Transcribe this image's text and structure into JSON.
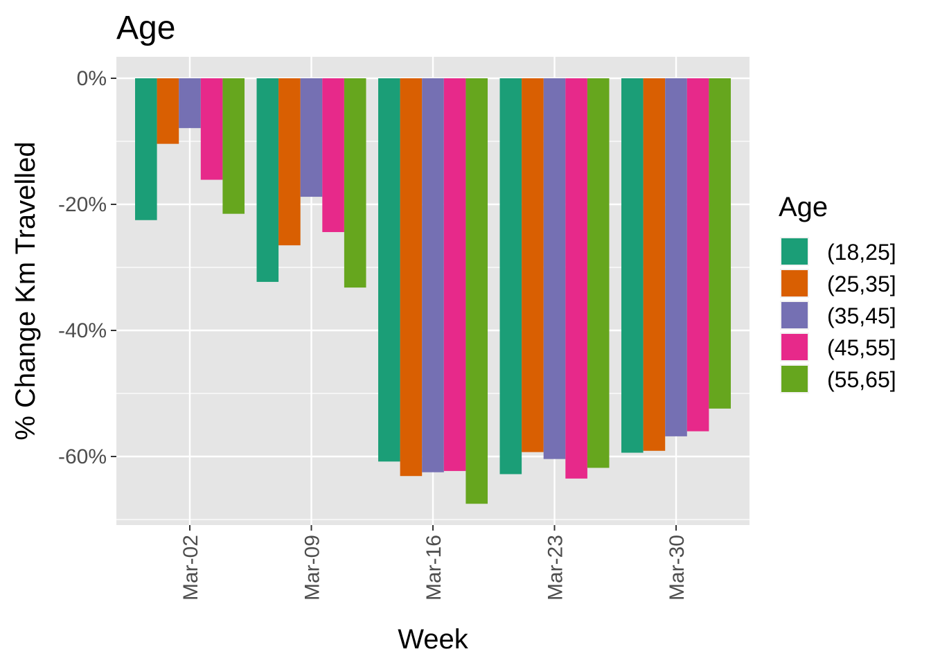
{
  "chart_data": {
    "type": "bar",
    "title": "Age",
    "xlabel": "Week",
    "ylabel": "% Change Km Travelled",
    "categories": [
      "Mar-02",
      "Mar-09",
      "Mar-16",
      "Mar-23",
      "Mar-30"
    ],
    "y_ticks": [
      0,
      -20,
      -40,
      -60
    ],
    "y_tick_labels": [
      "0%",
      "-20%",
      "-40%",
      "-60%"
    ],
    "ylim": [
      -70,
      0
    ],
    "grid": true,
    "legend_position": "right",
    "legend_title": "Age",
    "panel_background": "#e5e5e5",
    "series": [
      {
        "name": "(18,25]",
        "color": "#1b9e77",
        "values": [
          -22.5,
          -32.3,
          -60.8,
          -62.8,
          -59.4
        ]
      },
      {
        "name": "(25,35]",
        "color": "#d95f02",
        "values": [
          -10.4,
          -26.5,
          -63.1,
          -59.3,
          -59.1
        ]
      },
      {
        "name": "(35,45]",
        "color": "#7570b3",
        "values": [
          -7.9,
          -18.8,
          -62.5,
          -60.4,
          -56.8
        ]
      },
      {
        "name": "(45,55]",
        "color": "#e7298a",
        "values": [
          -16.1,
          -24.4,
          -62.3,
          -63.5,
          -56.0
        ]
      },
      {
        "name": "(55,65]",
        "color": "#66a61e",
        "values": [
          -21.5,
          -33.2,
          -67.5,
          -61.8,
          -52.4
        ]
      }
    ]
  }
}
